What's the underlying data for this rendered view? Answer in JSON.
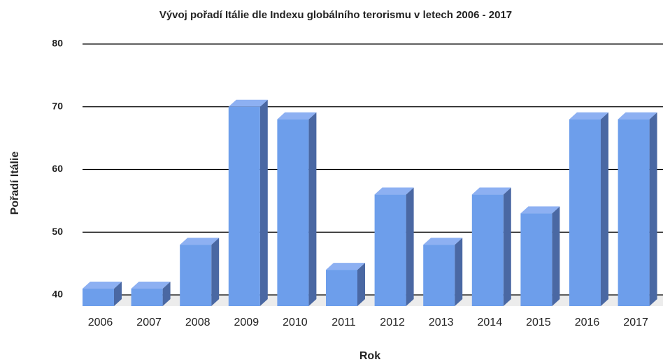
{
  "chart_data": {
    "type": "bar3d",
    "title": "Vývoj pořadí Itálie dle Indexu globálního terorismu v letech 2006 - 2017",
    "x_label": "Rok",
    "y_label": "Pořadí Itálie",
    "categories": [
      "2006",
      "2007",
      "2008",
      "2009",
      "2010",
      "2011",
      "2012",
      "2013",
      "2014",
      "2015",
      "2016",
      "2017"
    ],
    "values": [
      41,
      41,
      48,
      70,
      68,
      44,
      56,
      48,
      56,
      53,
      68,
      68
    ],
    "color": "#6d9eeb",
    "ylim": [
      40,
      80
    ],
    "yticks": [
      40,
      50,
      60,
      70,
      80
    ],
    "grid": true
  }
}
